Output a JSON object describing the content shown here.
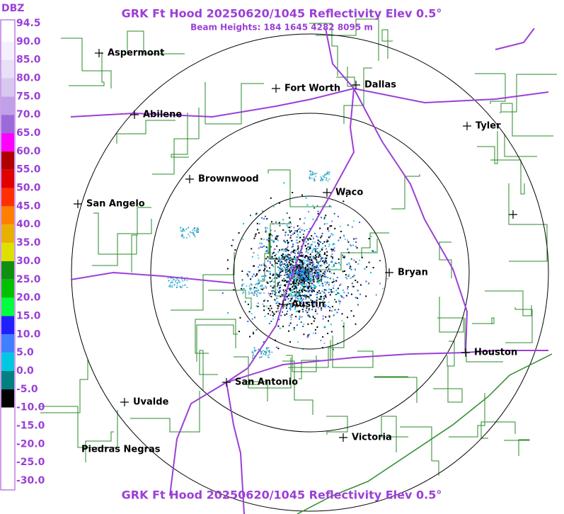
{
  "header": {
    "title": "GRK Ft Hood 20250620/1045 Reflectivity Elev 0.5°",
    "subtitle": "Beam Heights: 184 1645 4282 8095 m"
  },
  "legend": {
    "unit": "DBZ",
    "labels": [
      "94.5",
      "90.0",
      "85.0",
      "80.0",
      "75.0",
      "70.0",
      "65.0",
      "60.0",
      "55.0",
      "50.0",
      "45.0",
      "40.0",
      "35.0",
      "30.0",
      "25.0",
      "20.0",
      "15.0",
      "10.0",
      "5.0",
      "0.0",
      "-5.0",
      "-10.0",
      "-15.0",
      "-20.0",
      "-25.0",
      "-30.0"
    ]
  },
  "cities": [
    "Aspermont",
    "Abilene",
    "Fort Worth",
    "Dallas",
    "Tyler",
    "Brownwood",
    "Waco",
    "San Angelo",
    "Bryan",
    "Austin",
    "Houston",
    "San Antonio",
    "Uvalde",
    "Victoria",
    "Piedras Negras"
  ],
  "footer": {
    "title": "GRK Ft Hood 20250620/1045 Reflectivity Elev 0.5°"
  }
}
